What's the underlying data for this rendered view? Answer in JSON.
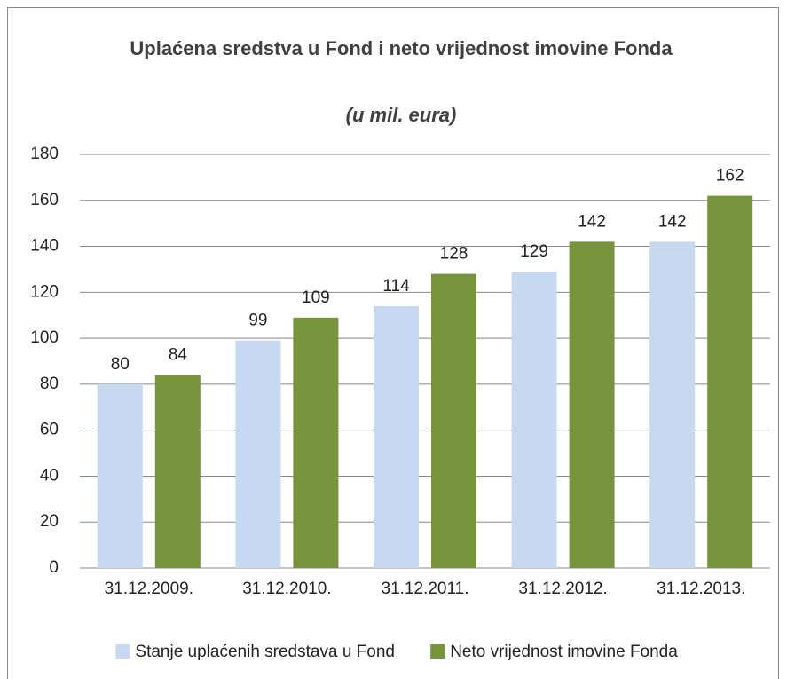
{
  "chart_data": {
    "type": "bar",
    "title": "Uplaćena sredstva u Fond i neto vrijednost imovine Fonda",
    "subtitle": "(u mil. eura)",
    "categories": [
      "31.12.2009.",
      "31.12.2010.",
      "31.12.2011.",
      "31.12.2012.",
      "31.12.2013."
    ],
    "series": [
      {
        "name": "Stanje uplaćenih sredstava u Fond",
        "color": "#c6d9f1",
        "values": [
          80,
          99,
          114,
          129,
          142
        ]
      },
      {
        "name": "Neto vrijednost imovine Fonda",
        "color": "#77933c",
        "values": [
          84,
          109,
          128,
          142,
          162
        ]
      }
    ],
    "ylim": [
      0,
      180
    ],
    "yticks": [
      0,
      20,
      40,
      60,
      80,
      100,
      120,
      140,
      160,
      180
    ],
    "grid": true,
    "legend": "bottom"
  }
}
